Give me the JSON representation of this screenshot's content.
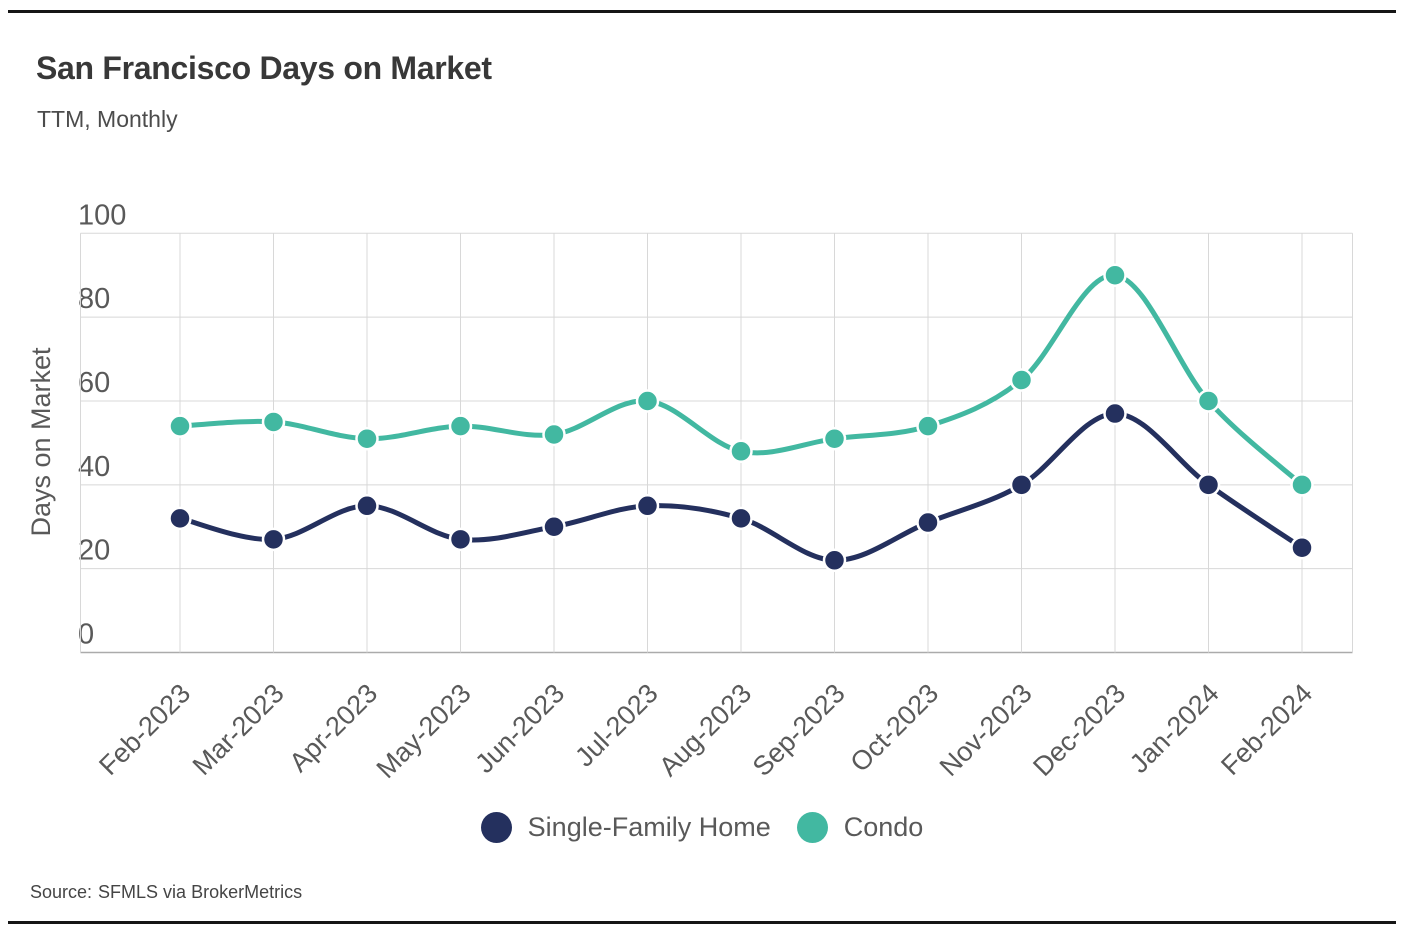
{
  "header": {
    "title": "San Francisco Days on Market",
    "subtitle": "TTM, Monthly"
  },
  "chart_data": {
    "type": "line",
    "title": "San Francisco Days on Market",
    "subtitle": "TTM, Monthly",
    "categories": [
      "Feb-2023",
      "Mar-2023",
      "Apr-2023",
      "May-2023",
      "Jun-2023",
      "Jul-2023",
      "Aug-2023",
      "Sep-2023",
      "Oct-2023",
      "Nov-2023",
      "Dec-2023",
      "Jan-2024",
      "Feb-2024"
    ],
    "series": [
      {
        "name": "Single-Family Home",
        "color": "#24305e",
        "values": [
          32,
          27,
          35,
          27,
          30,
          35,
          32,
          22,
          31,
          40,
          57,
          40,
          25
        ]
      },
      {
        "name": "Condo",
        "color": "#42b8a1",
        "values": [
          54,
          55,
          51,
          54,
          52,
          60,
          48,
          51,
          54,
          65,
          90,
          60,
          40
        ]
      }
    ],
    "xlabel": "",
    "ylabel": "Days on Market",
    "ylim": [
      0,
      100
    ],
    "yticks": [
      0,
      20,
      40,
      60,
      80,
      100
    ],
    "grid": true,
    "marker": "circle",
    "smooth": true,
    "legend_position": "bottom"
  },
  "footer": {
    "source_label": "Source:",
    "source_text": "SFMLS via BrokerMetrics"
  }
}
